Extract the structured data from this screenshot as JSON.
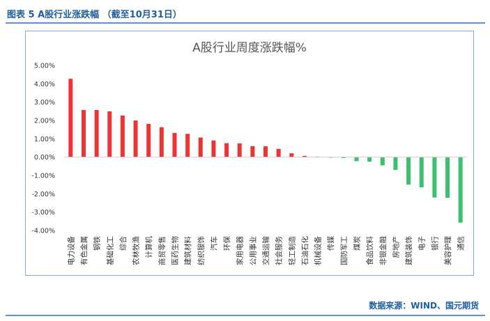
{
  "figure_title": "图表 5 A股行业涨跌幅 （截至10月31日）",
  "source": "数据来源：WIND、国元期货",
  "chart_data": {
    "type": "bar",
    "title": "A股行业周度涨跌幅%",
    "xlabel": "",
    "ylabel": "",
    "ylim": [
      -4,
      5
    ],
    "yticks": [
      5,
      4,
      3,
      2,
      1,
      0,
      -1,
      -2,
      -3,
      -4
    ],
    "ytick_labels": [
      "5.00%",
      "4.00%",
      "3.00%",
      "2.00%",
      "1.00%",
      "0.00%",
      "-1.00%",
      "-2.00%",
      "-3.00%",
      "-4.00%"
    ],
    "grid": false,
    "legend": "none",
    "colors": {
      "positive": "#ee3333",
      "negative": "#3cbf6e"
    },
    "categories": [
      "电力设备",
      "有色金属",
      "钢铁",
      "基础化工",
      "综合",
      "农林牧渔",
      "计算机",
      "商贸零售",
      "医药生物",
      "建筑材料",
      "纺织服饰",
      "汽车",
      "环保",
      "家用电器",
      "公用事业",
      "交通运输",
      "社会服务",
      "轻工制造",
      "石油石化",
      "机械设备",
      "传媒",
      "国防军工",
      "煤炭",
      "食品饮料",
      "非银金融",
      "房地产",
      "建筑装饰",
      "电子",
      "银行",
      "美容护理",
      "通信"
    ],
    "values": [
      4.27,
      2.57,
      2.57,
      2.5,
      2.27,
      2.0,
      1.81,
      1.63,
      1.32,
      1.27,
      1.07,
      0.91,
      0.76,
      0.75,
      0.6,
      0.59,
      0.45,
      0.21,
      0.07,
      0.03,
      -0.03,
      -0.05,
      -0.22,
      -0.25,
      -0.45,
      -0.7,
      -1.5,
      -1.65,
      -2.2,
      -2.22,
      -3.57
    ]
  }
}
